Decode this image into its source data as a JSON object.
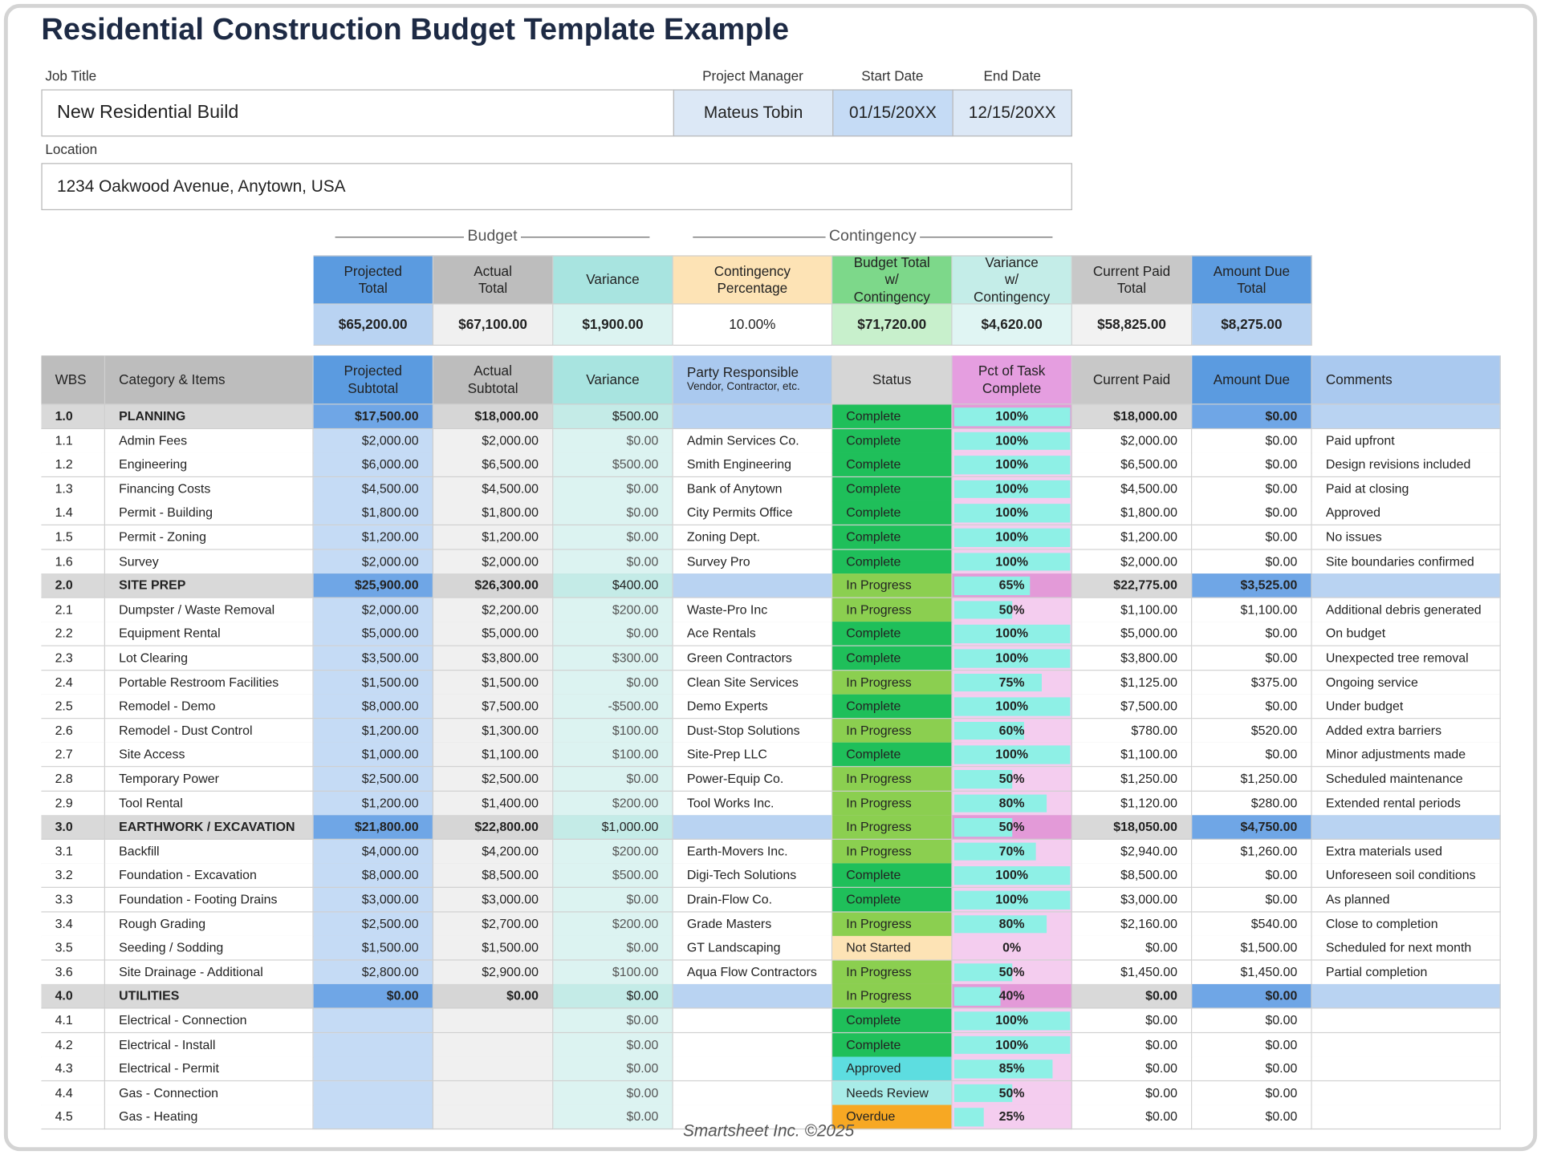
{
  "header": {
    "title": "Residential Construction Budget Template Example",
    "job_title_label": "Job Title",
    "job_title": "New Residential Build",
    "project_manager_label": "Project Manager",
    "project_manager": "Mateus Tobin",
    "start_date_label": "Start Date",
    "start_date": "01/15/20XX",
    "end_date_label": "End Date",
    "end_date": "12/15/20XX",
    "location_label": "Location",
    "location": "1234 Oakwood Avenue, Anytown, USA"
  },
  "summary": {
    "budget_group": "Budget",
    "contingency_group": "Contingency",
    "headers": [
      "Projected\nTotal",
      "Actual\nTotal",
      "Variance",
      "Contingency\nPercentage",
      "Budget Total\nw/ Contingency",
      "Variance\nw/ Contingency",
      "Current Paid\nTotal",
      "Amount Due\nTotal"
    ],
    "values": [
      "$65,200.00",
      "$67,100.00",
      "$1,900.00",
      "10.00%",
      "$71,720.00",
      "$4,620.00",
      "$58,825.00",
      "$8,275.00"
    ]
  },
  "table": {
    "columns": [
      "WBS",
      "Category & Items",
      "Projected\nSubtotal",
      "Actual\nSubtotal",
      "Variance",
      "Party Responsible",
      "Status",
      "Pct of Task\nComplete",
      "Current Paid",
      "Amount Due",
      "Comments"
    ],
    "party_note": "Vendor, Contractor, etc.",
    "rows": [
      [
        "1.0",
        "PLANNING",
        "$17,500.00",
        "$18,000.00",
        "$500.00",
        null,
        "Complete",
        "100%",
        "$18,000.00",
        "$0.00",
        null
      ],
      [
        "1.1",
        "Admin Fees",
        "$2,000.00",
        "$2,000.00",
        "$0.00",
        "Admin Services Co.",
        "Complete",
        "100%",
        "$2,000.00",
        "$0.00",
        "Paid upfront"
      ],
      [
        "1.2",
        "Engineering",
        "$6,000.00",
        "$6,500.00",
        "$500.00",
        "Smith Engineering",
        "Complete",
        "100%",
        "$6,500.00",
        "$0.00",
        "Design revisions included"
      ],
      [
        "1.3",
        "Financing Costs",
        "$4,500.00",
        "$4,500.00",
        "$0.00",
        "Bank of Anytown",
        "Complete",
        "100%",
        "$4,500.00",
        "$0.00",
        "Paid at closing"
      ],
      [
        "1.4",
        "Permit - Building",
        "$1,800.00",
        "$1,800.00",
        "$0.00",
        "City Permits Office",
        "Complete",
        "100%",
        "$1,800.00",
        "$0.00",
        "Approved"
      ],
      [
        "1.5",
        "Permit - Zoning",
        "$1,200.00",
        "$1,200.00",
        "$0.00",
        "Zoning Dept.",
        "Complete",
        "100%",
        "$1,200.00",
        "$0.00",
        "No issues"
      ],
      [
        "1.6",
        "Survey",
        "$2,000.00",
        "$2,000.00",
        "$0.00",
        "Survey Pro",
        "Complete",
        "100%",
        "$2,000.00",
        "$0.00",
        "Site boundaries confirmed"
      ],
      [
        "2.0",
        "SITE PREP",
        "$25,900.00",
        "$26,300.00",
        "$400.00",
        null,
        "In Progress",
        "65%",
        "$22,775.00",
        "$3,525.00",
        null
      ],
      [
        "2.1",
        "Dumpster / Waste Removal",
        "$2,000.00",
        "$2,200.00",
        "$200.00",
        "Waste-Pro Inc",
        "In Progress",
        "50%",
        "$1,100.00",
        "$1,100.00",
        "Additional debris generated"
      ],
      [
        "2.2",
        "Equipment Rental",
        "$5,000.00",
        "$5,000.00",
        "$0.00",
        "Ace Rentals",
        "Complete",
        "100%",
        "$5,000.00",
        "$0.00",
        "On budget"
      ],
      [
        "2.3",
        "Lot Clearing",
        "$3,500.00",
        "$3,800.00",
        "$300.00",
        "Green Contractors",
        "Complete",
        "100%",
        "$3,800.00",
        "$0.00",
        "Unexpected tree removal"
      ],
      [
        "2.4",
        "Portable Restroom Facilities",
        "$1,500.00",
        "$1,500.00",
        "$0.00",
        "Clean Site Services",
        "In Progress",
        "75%",
        "$1,125.00",
        "$375.00",
        "Ongoing service"
      ],
      [
        "2.5",
        "Remodel - Demo",
        "$8,000.00",
        "$7,500.00",
        "-$500.00",
        "Demo Experts",
        "Complete",
        "100%",
        "$7,500.00",
        "$0.00",
        "Under budget"
      ],
      [
        "2.6",
        "Remodel - Dust Control",
        "$1,200.00",
        "$1,300.00",
        "$100.00",
        "Dust-Stop Solutions",
        "In Progress",
        "60%",
        "$780.00",
        "$520.00",
        "Added extra barriers"
      ],
      [
        "2.7",
        "Site Access",
        "$1,000.00",
        "$1,100.00",
        "$100.00",
        "Site-Prep LLC",
        "Complete",
        "100%",
        "$1,100.00",
        "$0.00",
        "Minor adjustments made"
      ],
      [
        "2.8",
        "Temporary Power",
        "$2,500.00",
        "$2,500.00",
        "$0.00",
        "Power-Equip Co.",
        "In Progress",
        "50%",
        "$1,250.00",
        "$1,250.00",
        "Scheduled maintenance"
      ],
      [
        "2.9",
        "Tool Rental",
        "$1,200.00",
        "$1,400.00",
        "$200.00",
        "Tool Works Inc.",
        "In Progress",
        "80%",
        "$1,120.00",
        "$280.00",
        "Extended rental periods"
      ],
      [
        "3.0",
        "EARTHWORK / EXCAVATION",
        "$21,800.00",
        "$22,800.00",
        "$1,000.00",
        null,
        "In Progress",
        "50%",
        "$18,050.00",
        "$4,750.00",
        null
      ],
      [
        "3.1",
        "Backfill",
        "$4,000.00",
        "$4,200.00",
        "$200.00",
        "Earth-Movers Inc.",
        "In Progress",
        "70%",
        "$2,940.00",
        "$1,260.00",
        "Extra materials used"
      ],
      [
        "3.2",
        "Foundation - Excavation",
        "$8,000.00",
        "$8,500.00",
        "$500.00",
        "Digi-Tech Solutions",
        "Complete",
        "100%",
        "$8,500.00",
        "$0.00",
        "Unforeseen soil conditions"
      ],
      [
        "3.3",
        "Foundation - Footing Drains",
        "$3,000.00",
        "$3,000.00",
        "$0.00",
        "Drain-Flow Co.",
        "Complete",
        "100%",
        "$3,000.00",
        "$0.00",
        "As planned"
      ],
      [
        "3.4",
        "Rough Grading",
        "$2,500.00",
        "$2,700.00",
        "$200.00",
        "Grade Masters",
        "In Progress",
        "80%",
        "$2,160.00",
        "$540.00",
        "Close to completion"
      ],
      [
        "3.5",
        "Seeding / Sodding",
        "$1,500.00",
        "$1,500.00",
        "$0.00",
        "GT Landscaping",
        "Not Started",
        "0%",
        "$0.00",
        "$1,500.00",
        "Scheduled for next month"
      ],
      [
        "3.6",
        "Site Drainage - Additional",
        "$2,800.00",
        "$2,900.00",
        "$100.00",
        "Aqua Flow Contractors",
        "In Progress",
        "50%",
        "$1,450.00",
        "$1,450.00",
        "Partial completion"
      ],
      [
        "4.0",
        "UTILITIES",
        "$0.00",
        "$0.00",
        "$0.00",
        null,
        "In Progress",
        "40%",
        "$0.00",
        "$0.00",
        null
      ],
      [
        "4.1",
        "Electrical - Connection",
        null,
        null,
        "$0.00",
        null,
        "Complete",
        "100%",
        "$0.00",
        "$0.00",
        null
      ],
      [
        "4.2",
        "Electrical - Install",
        null,
        null,
        "$0.00",
        null,
        "Complete",
        "100%",
        "$0.00",
        "$0.00",
        null
      ],
      [
        "4.3",
        "Electrical - Permit",
        null,
        null,
        "$0.00",
        null,
        "Approved",
        "85%",
        "$0.00",
        "$0.00",
        null
      ],
      [
        "4.4",
        "Gas - Connection",
        null,
        null,
        "$0.00",
        null,
        "Needs Review",
        "50%",
        "$0.00",
        "$0.00",
        null
      ],
      [
        "4.5",
        "Gas - Heating",
        null,
        null,
        "$0.00",
        null,
        "Overdue",
        "25%",
        "$0.00",
        "$0.00",
        null
      ]
    ]
  },
  "footer": "Smartsheet Inc. ©2025"
}
